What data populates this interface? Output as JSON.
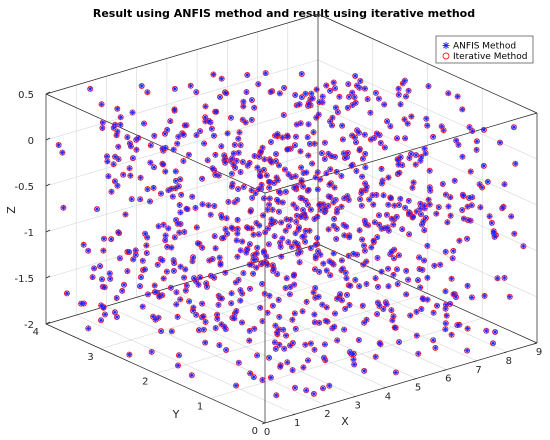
{
  "chart_data": {
    "type": "scatter",
    "title": "Result using ANFIS method and result using iterative method",
    "xlabel": "X",
    "ylabel": "Y",
    "zlabel": "Z",
    "xlim": [
      0,
      9
    ],
    "ylim": [
      0,
      4
    ],
    "zlim": [
      -2,
      0.5
    ],
    "x_ticks": [
      "0",
      "1",
      "2",
      "3",
      "4",
      "5",
      "6",
      "7",
      "8",
      "9"
    ],
    "y_ticks": [
      "0",
      "1",
      "2",
      "3",
      "4"
    ],
    "z_ticks": [
      "0.5",
      "0",
      "-0.5",
      "-1",
      "-1.5",
      "-2"
    ],
    "grid": true,
    "legend_position": "top-right",
    "series": [
      {
        "name": "ANFIS Method",
        "marker": "asterisk",
        "color": "#1f1fff"
      },
      {
        "name": "Iterative Method",
        "marker": "circle",
        "color": "#ff2020"
      }
    ],
    "point_count_estimate": 1000,
    "point_distribution": "uniform random cloud filling the 3-D box; ANFIS and iterative results coincide at every point"
  }
}
